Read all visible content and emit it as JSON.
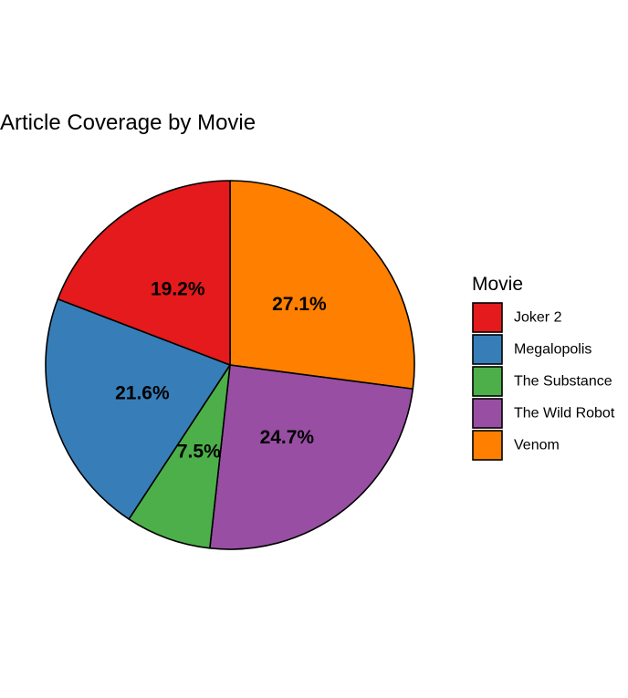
{
  "chart_data": {
    "type": "pie",
    "title": "Article Coverage by Movie",
    "legend_title": "Movie",
    "legend_position": "right",
    "slices": [
      {
        "label": "Venom",
        "value": 27.1,
        "display": "27.1%",
        "color": "#FF7F00"
      },
      {
        "label": "The Wild Robot",
        "value": 24.7,
        "display": "24.7%",
        "color": "#984EA3"
      },
      {
        "label": "The Substance",
        "value": 7.5,
        "display": "7.5%",
        "color": "#4DAF4A"
      },
      {
        "label": "Megalopolis",
        "value": 21.6,
        "display": "21.6%",
        "color": "#377EB8"
      },
      {
        "label": "Joker 2",
        "value": 19.2,
        "display": "19.2%",
        "color": "#E41A1C"
      }
    ],
    "legend_order": [
      "Joker 2",
      "Megalopolis",
      "The Substance",
      "The Wild Robot",
      "Venom"
    ]
  }
}
